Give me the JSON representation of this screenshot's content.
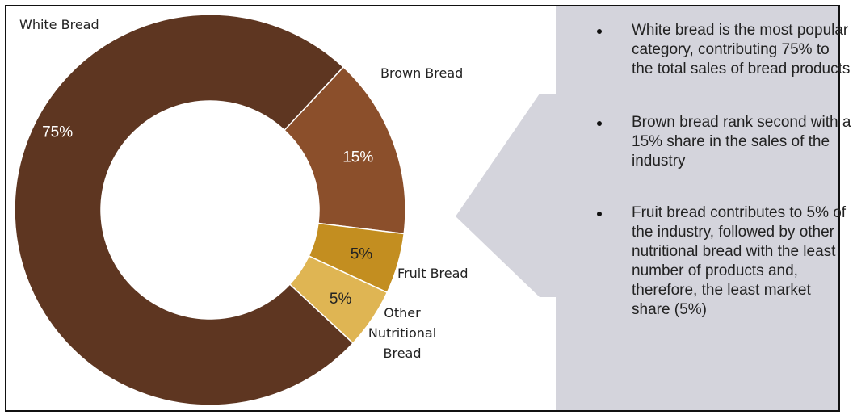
{
  "chart_data": {
    "type": "pie",
    "categories": [
      "White Bread",
      "Brown Bread",
      "Fruit Bread",
      "Other Nutritional Bread"
    ],
    "values": [
      75,
      15,
      5,
      5
    ],
    "value_labels": [
      "75%",
      "15%",
      "5%",
      "5%"
    ],
    "colors": [
      "#5e3621",
      "#8b4f2b",
      "#c38e20",
      "#dfb553"
    ],
    "label_colors": [
      "#ffffff",
      "#ffffff",
      "#222222",
      "#222222"
    ],
    "category_label_lines": [
      [
        "White Bread"
      ],
      [
        "Brown Bread"
      ],
      [
        "Fruit Bread"
      ],
      [
        "Other",
        "Nutritional",
        "Bread"
      ]
    ],
    "style": "donut"
  },
  "bullets": [
    "White bread is the most popular category, contributing 75% to the total sales of bread products",
    "Brown bread rank second with a 15% share in the sales of the industry",
    "Fruit bread contributes to 5% of the industry, followed by other nutritional bread with the least number of products and, therefore, the least market share (5%)"
  ],
  "colors": {
    "arrow": "#d4d4dc",
    "text": "#222222"
  }
}
